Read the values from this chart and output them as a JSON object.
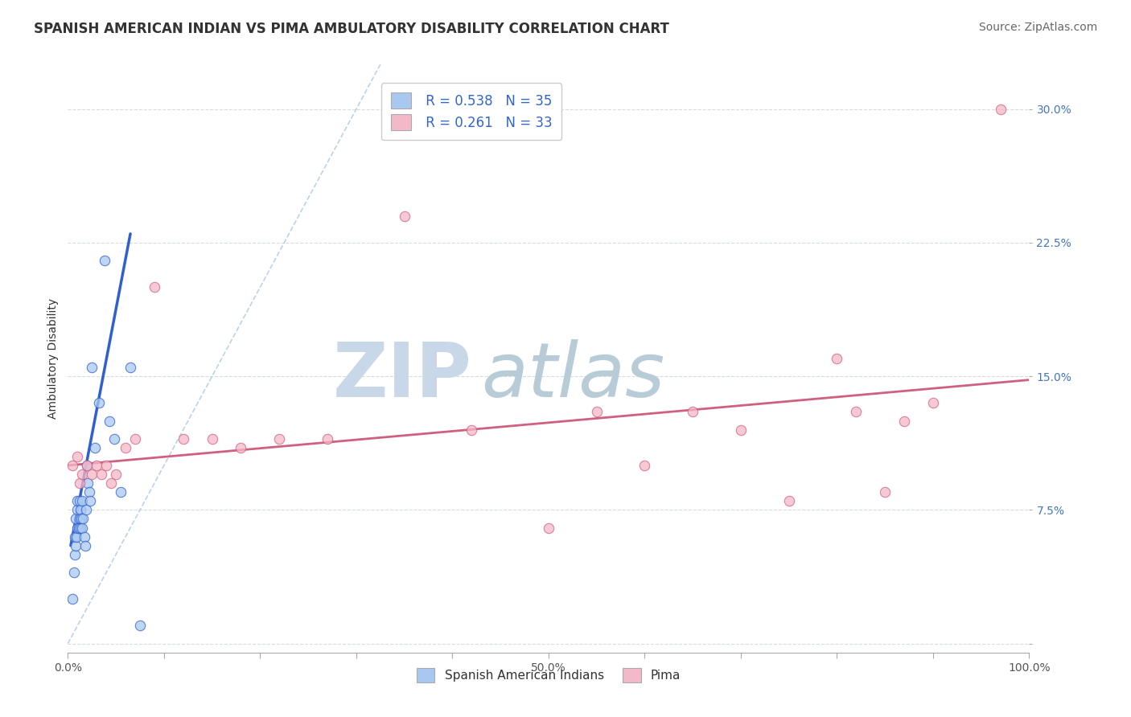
{
  "title": "SPANISH AMERICAN INDIAN VS PIMA AMBULATORY DISABILITY CORRELATION CHART",
  "source": "Source: ZipAtlas.com",
  "ylabel": "Ambulatory Disability",
  "xlim": [
    0.0,
    1.0
  ],
  "ylim": [
    -0.005,
    0.325
  ],
  "xticks": [
    0.0,
    0.1,
    0.2,
    0.3,
    0.4,
    0.5,
    0.6,
    0.7,
    0.8,
    0.9,
    1.0
  ],
  "xtick_labels": [
    "0.0%",
    "",
    "",
    "",
    "",
    "50.0%",
    "",
    "",
    "",
    "",
    "100.0%"
  ],
  "yticks": [
    0.0,
    0.075,
    0.15,
    0.225,
    0.3
  ],
  "ytick_labels": [
    "",
    "7.5%",
    "15.0%",
    "22.5%",
    "30.0%"
  ],
  "legend_r1": "R = 0.538",
  "legend_n1": "N = 35",
  "legend_r2": "R = 0.261",
  "legend_n2": "N = 33",
  "color_blue": "#a8c8f0",
  "color_pink": "#f5b8c8",
  "line_blue": "#3060d0",
  "line_pink": "#d06080",
  "line_diag": "#a8c8e8",
  "watermark_zip": "ZIP",
  "watermark_atlas": "atlas",
  "watermark_color_zip": "#c0d0e0",
  "watermark_color_atlas": "#b0c8d8",
  "grid_color": "#d0d8e0",
  "background_color": "#ffffff",
  "title_fontsize": 12,
  "label_fontsize": 10,
  "tick_fontsize": 10,
  "source_fontsize": 10,
  "blue_points_x": [
    0.005,
    0.006,
    0.007,
    0.007,
    0.008,
    0.008,
    0.009,
    0.01,
    0.01,
    0.01,
    0.011,
    0.012,
    0.012,
    0.013,
    0.013,
    0.014,
    0.015,
    0.015,
    0.016,
    0.017,
    0.018,
    0.019,
    0.02,
    0.021,
    0.022,
    0.023,
    0.025,
    0.028,
    0.032,
    0.038,
    0.043,
    0.048,
    0.055,
    0.065,
    0.075
  ],
  "blue_points_y": [
    0.025,
    0.04,
    0.05,
    0.06,
    0.055,
    0.07,
    0.06,
    0.065,
    0.075,
    0.08,
    0.065,
    0.07,
    0.08,
    0.065,
    0.075,
    0.07,
    0.065,
    0.08,
    0.07,
    0.06,
    0.055,
    0.075,
    0.1,
    0.09,
    0.085,
    0.08,
    0.155,
    0.11,
    0.135,
    0.215,
    0.125,
    0.115,
    0.085,
    0.155,
    0.01
  ],
  "pink_points_x": [
    0.005,
    0.01,
    0.012,
    0.015,
    0.02,
    0.025,
    0.03,
    0.035,
    0.04,
    0.045,
    0.05,
    0.06,
    0.07,
    0.09,
    0.12,
    0.15,
    0.18,
    0.22,
    0.27,
    0.35,
    0.42,
    0.5,
    0.55,
    0.6,
    0.65,
    0.7,
    0.75,
    0.8,
    0.82,
    0.85,
    0.87,
    0.9,
    0.97
  ],
  "pink_points_y": [
    0.1,
    0.105,
    0.09,
    0.095,
    0.1,
    0.095,
    0.1,
    0.095,
    0.1,
    0.09,
    0.095,
    0.11,
    0.115,
    0.2,
    0.115,
    0.115,
    0.11,
    0.115,
    0.115,
    0.24,
    0.12,
    0.065,
    0.13,
    0.1,
    0.13,
    0.12,
    0.08,
    0.16,
    0.13,
    0.085,
    0.125,
    0.135,
    0.3
  ],
  "blue_line_x": [
    0.003,
    0.065
  ],
  "blue_line_y": [
    0.055,
    0.23
  ],
  "pink_line_x": [
    0.0,
    1.0
  ],
  "pink_line_y": [
    0.1,
    0.148
  ],
  "diag_line_x": [
    0.0,
    0.325
  ],
  "diag_line_y": [
    0.0,
    0.325
  ]
}
